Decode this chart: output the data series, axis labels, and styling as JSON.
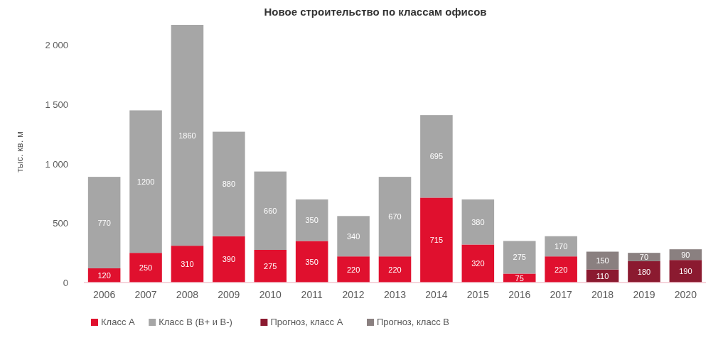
{
  "chart_data": {
    "type": "bar",
    "title": "Новое строительство по классам офисов",
    "ylabel": "тыс. кв. м",
    "stacked": true,
    "data_labels": true,
    "legend": "bottom",
    "categories": [
      "2006",
      "2007",
      "2008",
      "2009",
      "2010",
      "2011",
      "2012",
      "2013",
      "2014",
      "2015",
      "2016",
      "2017",
      "2018",
      "2019",
      "2020"
    ],
    "ylim": [
      0,
      2200
    ],
    "yticks": [
      0,
      {
        "value": 500,
        "label": "500"
      },
      {
        "value": 1000,
        "label": "1 000"
      },
      {
        "value": 1500,
        "label": "1 500"
      },
      {
        "value": 2000,
        "label": "2 000"
      }
    ],
    "series": [
      {
        "name": "Класс А",
        "color": "#e0102e",
        "values": [
          120,
          250,
          310,
          390,
          275,
          350,
          220,
          220,
          715,
          320,
          75,
          220,
          null,
          null,
          null
        ]
      },
      {
        "name": "Класс В (В+ и В-)",
        "color": "#a6a6a6",
        "values": [
          770,
          1200,
          1860,
          880,
          660,
          350,
          340,
          670,
          695,
          380,
          275,
          170,
          null,
          null,
          null
        ]
      },
      {
        "name": "Прогноз, класс А",
        "color": "#8b1a30",
        "values": [
          null,
          null,
          null,
          null,
          null,
          null,
          null,
          null,
          null,
          null,
          null,
          null,
          110,
          180,
          190
        ]
      },
      {
        "name": "Прогноз, класс В",
        "color": "#8a8080",
        "values": [
          null,
          null,
          null,
          null,
          null,
          null,
          null,
          null,
          null,
          null,
          null,
          null,
          150,
          70,
          90
        ]
      }
    ]
  }
}
